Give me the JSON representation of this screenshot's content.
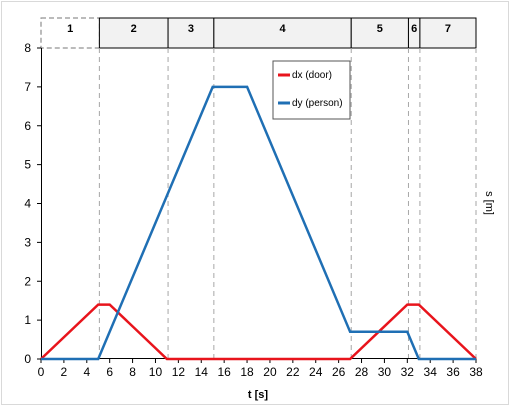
{
  "chart_data": {
    "type": "line",
    "title": "",
    "xlabel": "t [s]",
    "ylabel": "s [m]",
    "xlim": [
      0,
      38
    ],
    "ylim": [
      0,
      8
    ],
    "xticks": [
      0,
      2,
      4,
      6,
      8,
      10,
      12,
      14,
      16,
      18,
      20,
      22,
      24,
      26,
      28,
      30,
      32,
      34,
      36,
      38
    ],
    "yticks": [
      0,
      1,
      2,
      3,
      4,
      5,
      6,
      7,
      8
    ],
    "grid": false,
    "legend_position": "top-right",
    "series": [
      {
        "name": "dx (door)",
        "color": "#e8141c",
        "x": [
          0,
          5,
          6,
          11,
          15,
          27,
          32,
          33,
          38
        ],
        "y": [
          0,
          1.4,
          1.4,
          0,
          0,
          0,
          1.4,
          1.4,
          0
        ]
      },
      {
        "name": "dy (person)",
        "color": "#1f6fb4",
        "x": [
          0,
          5,
          15,
          18,
          27,
          32,
          33,
          38
        ],
        "y": [
          0,
          0,
          7,
          7,
          0.7,
          0.7,
          0,
          0
        ]
      }
    ],
    "phase_boundaries": [
      5.1,
      11.1,
      15.1,
      27.1,
      32.1,
      33.1
    ],
    "phases": [
      {
        "label": "1",
        "start": 0,
        "end": 5.1,
        "style": "dashed"
      },
      {
        "label": "2",
        "start": 5.1,
        "end": 11.1,
        "style": "solid"
      },
      {
        "label": "3",
        "start": 11.1,
        "end": 15.1,
        "style": "solid"
      },
      {
        "label": "4",
        "start": 15.1,
        "end": 27.1,
        "style": "solid"
      },
      {
        "label": "5",
        "start": 27.1,
        "end": 32.1,
        "style": "solid"
      },
      {
        "label": "6",
        "start": 32.1,
        "end": 33.1,
        "style": "solid"
      },
      {
        "label": "7",
        "start": 33.1,
        "end": 38,
        "style": "solid"
      }
    ]
  }
}
